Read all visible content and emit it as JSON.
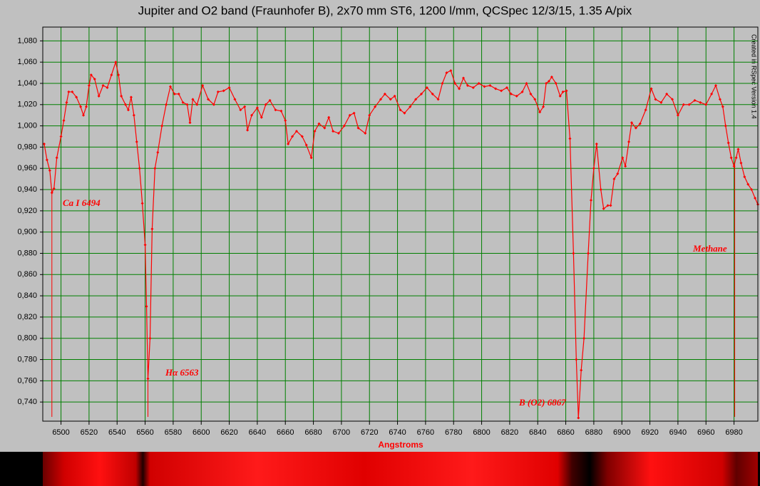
{
  "chart_data": {
    "type": "line",
    "title": "Jupiter and O2 band (Fraunhofer B),  2x70 mm ST6, 1200 l/mm, QCSpec 12/3/15, 1.35 A/pix",
    "xlabel": "Angstroms",
    "credit": "Created in RSpec Version 1.4",
    "grid": true,
    "xlim": [
      6487,
      6997
    ],
    "ylim": [
      0.722,
      1.093
    ],
    "xticks": [
      6500,
      6520,
      6540,
      6560,
      6580,
      6600,
      6620,
      6640,
      6660,
      6680,
      6700,
      6720,
      6740,
      6760,
      6780,
      6800,
      6820,
      6840,
      6860,
      6880,
      6900,
      6920,
      6940,
      6960,
      6980
    ],
    "yticks": [
      {
        "value": 0.74,
        "label": "0,740"
      },
      {
        "value": 0.76,
        "label": "0,760"
      },
      {
        "value": 0.78,
        "label": "0,780"
      },
      {
        "value": 0.8,
        "label": "0,800"
      },
      {
        "value": 0.82,
        "label": "0,820"
      },
      {
        "value": 0.84,
        "label": "0,840"
      },
      {
        "value": 0.86,
        "label": "0,860"
      },
      {
        "value": 0.88,
        "label": "0,880"
      },
      {
        "value": 0.9,
        "label": "0,900"
      },
      {
        "value": 0.92,
        "label": "0,920"
      },
      {
        "value": 0.94,
        "label": "0,940"
      },
      {
        "value": 0.96,
        "label": "0,960"
      },
      {
        "value": 0.98,
        "label": "0,980"
      },
      {
        "value": 1.0,
        "label": "1,000"
      },
      {
        "value": 1.02,
        "label": "1,020"
      },
      {
        "value": 1.04,
        "label": "1,040"
      },
      {
        "value": 1.06,
        "label": "1,060"
      },
      {
        "value": 1.08,
        "label": "1,080"
      }
    ],
    "annotations": [
      {
        "text": "Ca I 6494",
        "x": 6493.5
      },
      {
        "text": "Hα 6563",
        "x": 6562
      },
      {
        "text": "B (O2) 6867",
        "x": 6869
      },
      {
        "text": "Methane",
        "x": 6980.5
      }
    ],
    "series": [
      {
        "color": "#ff0000",
        "x": [
          6488,
          6490,
          6492,
          6493.5,
          6495,
          6497,
          6500,
          6502,
          6504,
          6505.5,
          6508,
          6511,
          6514,
          6516,
          6518,
          6520,
          6521.5,
          6524,
          6527,
          6530,
          6533,
          6536,
          6539,
          6541,
          6543,
          6546,
          6548,
          6550,
          6552,
          6554,
          6556,
          6558,
          6560,
          6561,
          6562,
          6563.5,
          6565,
          6567,
          6569,
          6572,
          6575,
          6578,
          6581,
          6584,
          6587,
          6590,
          6592,
          6594,
          6597,
          6601,
          6605,
          6609,
          6612,
          6616,
          6620,
          6624,
          6628,
          6631,
          6633,
          6636,
          6640,
          6643,
          6646,
          6649,
          6653,
          6657,
          6660,
          6662,
          6665,
          6668,
          6672,
          6675,
          6678.5,
          6681,
          6684,
          6688,
          6691,
          6694,
          6698,
          6702,
          6706,
          6709,
          6712,
          6717,
          6720,
          6724,
          6728,
          6731,
          6735,
          6738,
          6742,
          6745,
          6749,
          6753,
          6757,
          6761,
          6765,
          6769,
          6772,
          6775,
          6778,
          6781,
          6784,
          6787,
          6790,
          6794,
          6798,
          6802,
          6806,
          6810,
          6814,
          6818,
          6821,
          6825,
          6829,
          6832,
          6835,
          6838,
          6841.5,
          6844,
          6846,
          6848,
          6850,
          6853,
          6856,
          6858,
          6860.5,
          6863,
          6865.5,
          6867.5,
          6869,
          6871,
          6873,
          6876,
          6878,
          6880,
          6882,
          6885,
          6887,
          6890,
          6892,
          6894.5,
          6897,
          6900.5,
          6902.5,
          6905,
          6907,
          6910,
          6913,
          6917,
          6921,
          6924,
          6928,
          6932,
          6936,
          6940,
          6944,
          6948,
          6952,
          6956,
          6960,
          6964,
          6967,
          6970,
          6972,
          6974,
          6976,
          6978,
          6980,
          6981.5,
          6983,
          6985,
          6987.5,
          6990,
          6992.5,
          6995,
          6997
        ],
        "values": [
          0.983,
          0.968,
          0.958,
          0.937,
          0.941,
          0.97,
          0.99,
          1.005,
          1.022,
          1.032,
          1.032,
          1.027,
          1.018,
          1.01,
          1.018,
          1.038,
          1.048,
          1.044,
          1.028,
          1.038,
          1.036,
          1.048,
          1.06,
          1.048,
          1.028,
          1.02,
          1.015,
          1.027,
          1.01,
          0.985,
          0.96,
          0.927,
          0.888,
          0.83,
          0.762,
          0.8,
          0.903,
          0.96,
          0.975,
          1.0,
          1.02,
          1.037,
          1.03,
          1.03,
          1.022,
          1.02,
          1.003,
          1.025,
          1.02,
          1.038,
          1.025,
          1.02,
          1.032,
          1.033,
          1.036,
          1.025,
          1.015,
          1.018,
          0.996,
          1.01,
          1.017,
          1.008,
          1.02,
          1.024,
          1.015,
          1.014,
          1.005,
          0.983,
          0.99,
          0.995,
          0.99,
          0.982,
          0.97,
          0.995,
          1.002,
          0.998,
          1.008,
          0.995,
          0.993,
          1.0,
          1.01,
          1.012,
          0.998,
          0.993,
          1.01,
          1.018,
          1.025,
          1.03,
          1.025,
          1.028,
          1.015,
          1.012,
          1.018,
          1.025,
          1.03,
          1.036,
          1.03,
          1.025,
          1.04,
          1.05,
          1.052,
          1.04,
          1.035,
          1.045,
          1.038,
          1.036,
          1.04,
          1.037,
          1.038,
          1.035,
          1.033,
          1.036,
          1.03,
          1.028,
          1.032,
          1.04,
          1.03,
          1.025,
          1.013,
          1.018,
          1.04,
          1.042,
          1.046,
          1.04,
          1.028,
          1.032,
          1.033,
          0.988,
          0.88,
          0.78,
          0.725,
          0.77,
          0.8,
          0.88,
          0.93,
          0.96,
          0.983,
          0.94,
          0.922,
          0.925,
          0.925,
          0.95,
          0.955,
          0.97,
          0.962,
          0.985,
          1.003,
          0.998,
          1.002,
          1.015,
          1.035,
          1.025,
          1.022,
          1.03,
          1.025,
          1.01,
          1.02,
          1.02,
          1.024,
          1.022,
          1.02,
          1.03,
          1.038,
          1.025,
          1.018,
          1.0,
          0.984,
          0.97,
          0.962,
          0.97,
          0.978,
          0.965,
          0.952,
          0.945,
          0.94,
          0.932,
          0.926
        ]
      }
    ]
  }
}
